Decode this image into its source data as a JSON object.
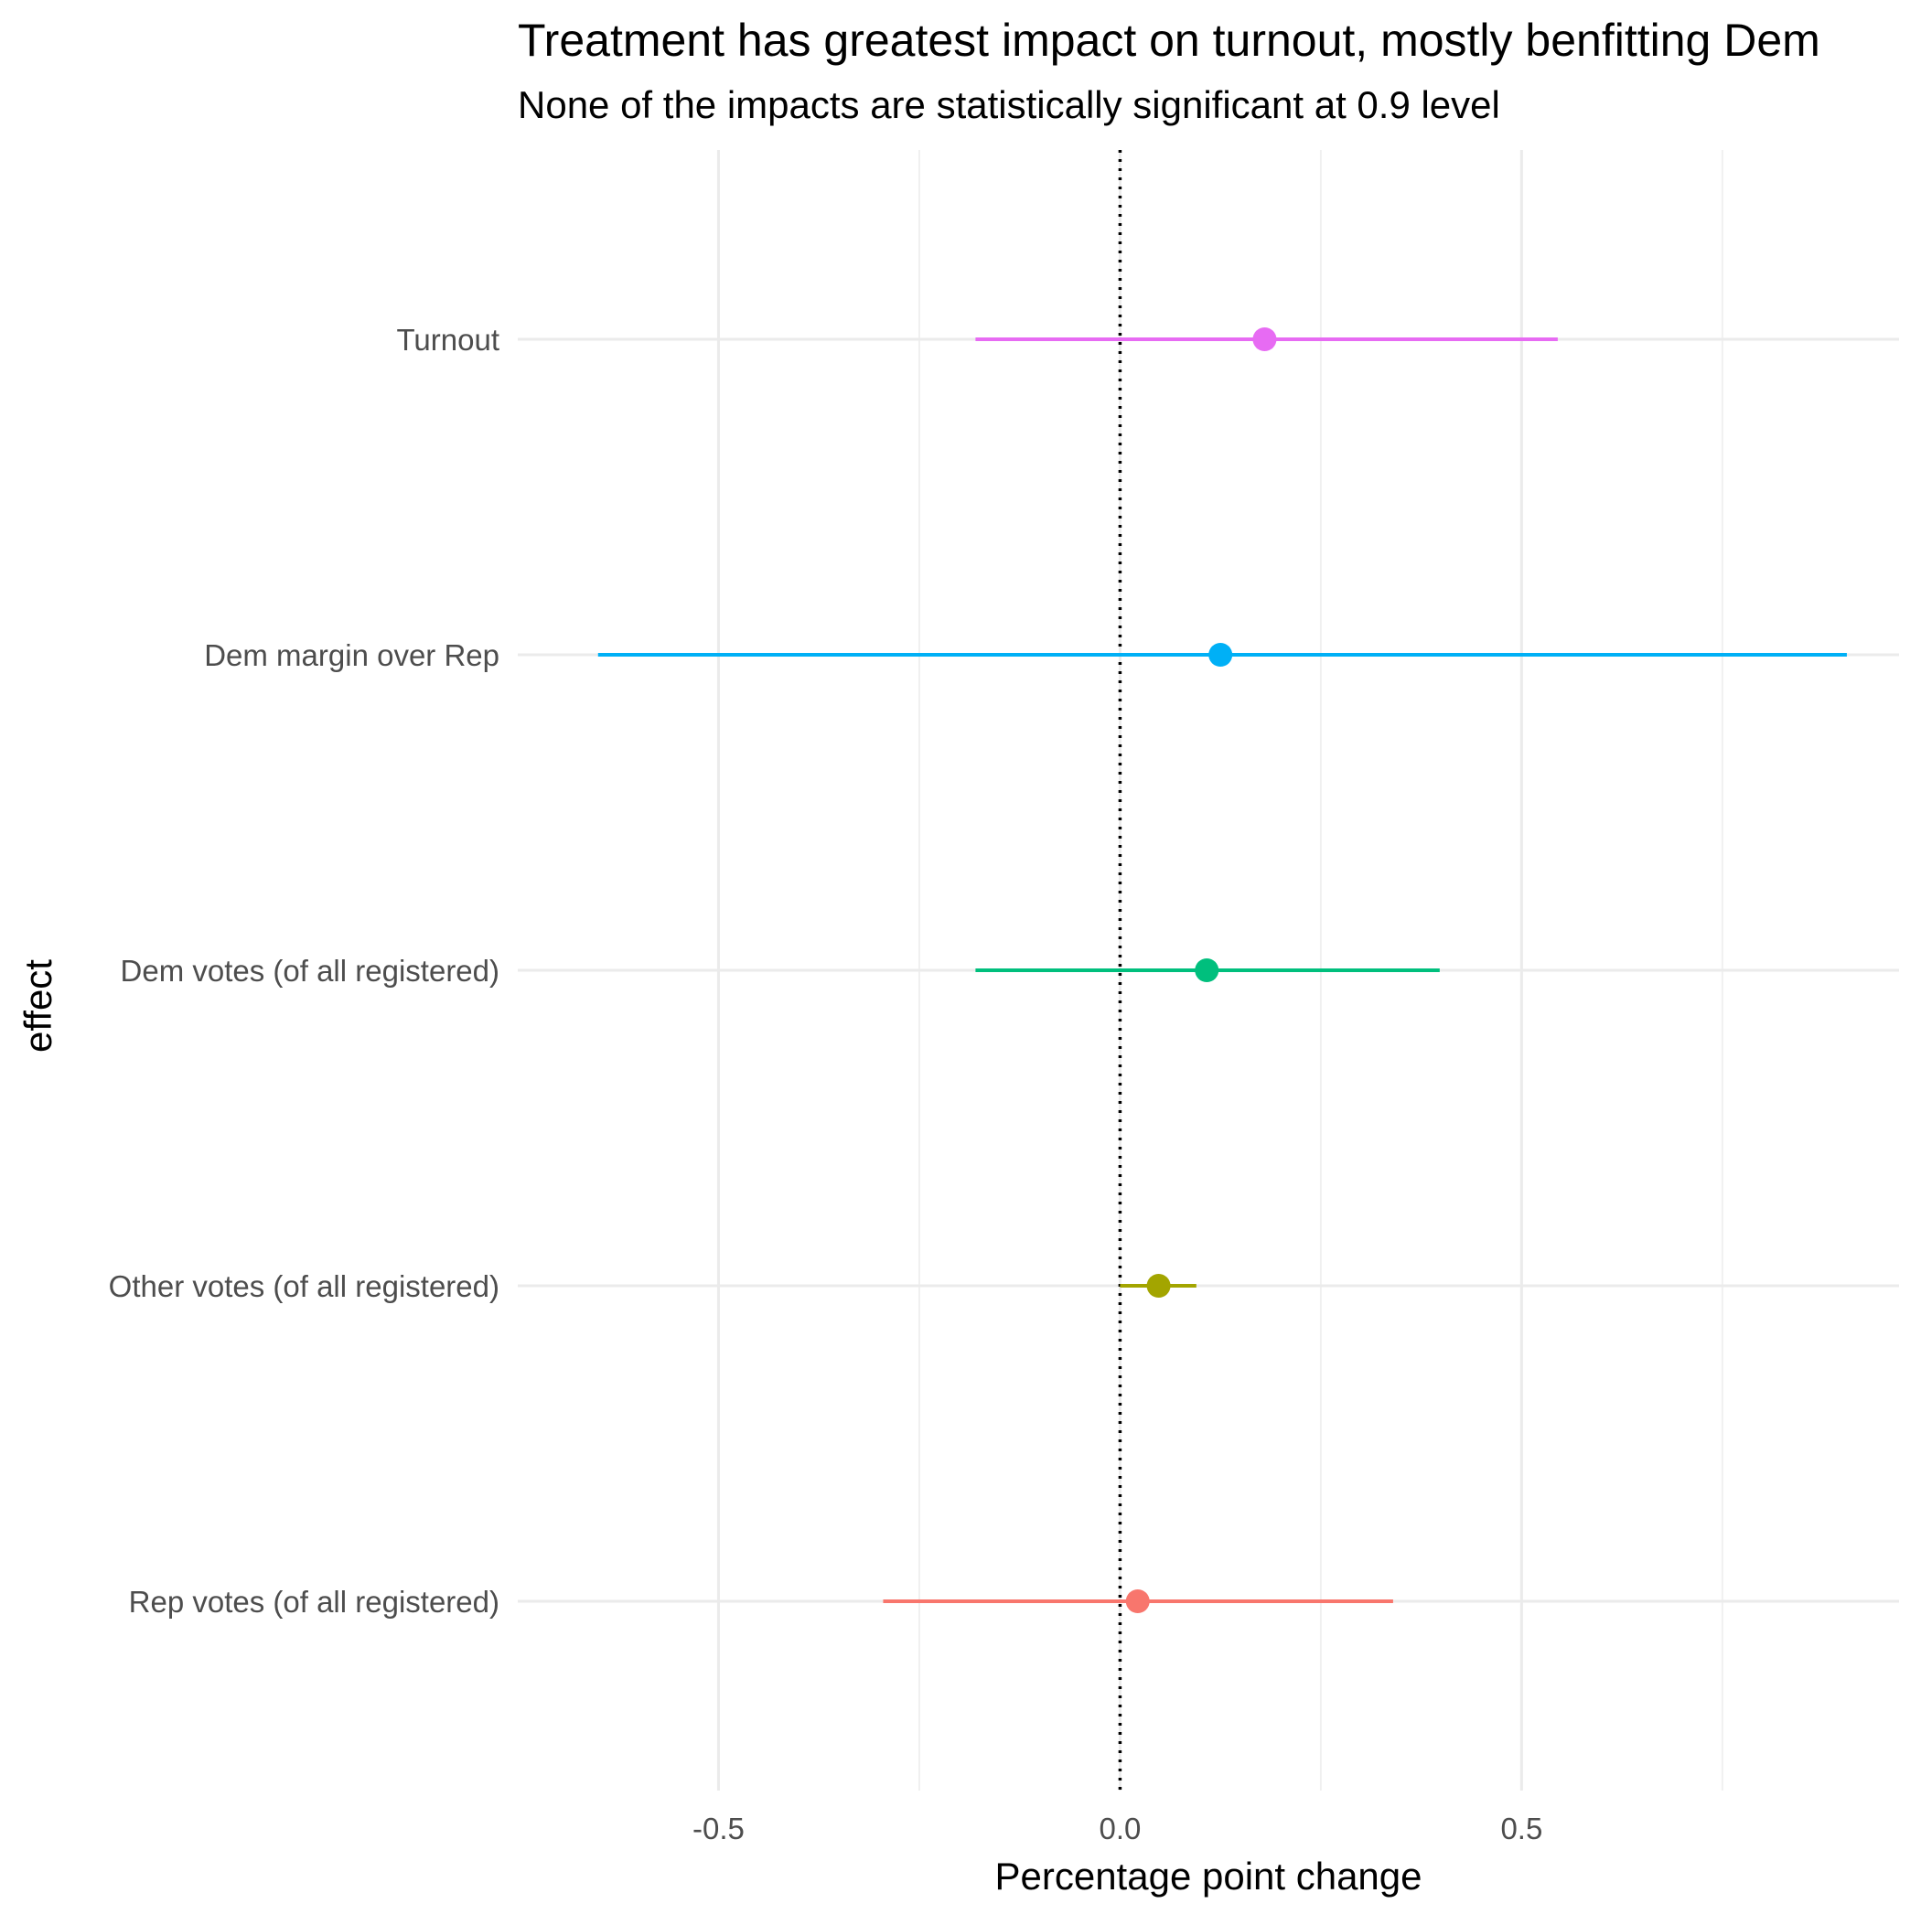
{
  "chart_data": {
    "type": "dot-and-whisker",
    "title": "Treatment has greatest impact on turnout, mostly benfitting Dem",
    "subtitle": "None of the impacts are statistically significant at 0.9 level",
    "xlabel": "Percentage point change",
    "ylabel": "effect",
    "xlim": [
      -0.75,
      0.97
    ],
    "x_ticks": [
      {
        "value": -0.5,
        "label": "-0.5"
      },
      {
        "value": 0.0,
        "label": "0.0"
      },
      {
        "value": 0.5,
        "label": "0.5"
      }
    ],
    "x_minor_ticks": [
      -0.25,
      0.25,
      0.75
    ],
    "reference_line": {
      "x": 0,
      "style": "dotted",
      "color": "#000000"
    },
    "grid": true,
    "legend": "none",
    "series": [
      {
        "category": "Turnout",
        "estimate": 0.18,
        "low": -0.18,
        "high": 0.545,
        "color": "#E76BF3"
      },
      {
        "category": "Dem margin over Rep",
        "estimate": 0.125,
        "low": -0.65,
        "high": 0.905,
        "color": "#00B0F6"
      },
      {
        "category": "Dem votes (of all registered)",
        "estimate": 0.108,
        "low": -0.18,
        "high": 0.398,
        "color": "#00BF7D"
      },
      {
        "category": "Other votes (of all registered)",
        "estimate": 0.048,
        "low": 0.0,
        "high": 0.095,
        "color": "#A3A500"
      },
      {
        "category": "Rep votes (of all registered)",
        "estimate": 0.022,
        "low": -0.295,
        "high": 0.34,
        "color": "#F8766D"
      }
    ]
  }
}
